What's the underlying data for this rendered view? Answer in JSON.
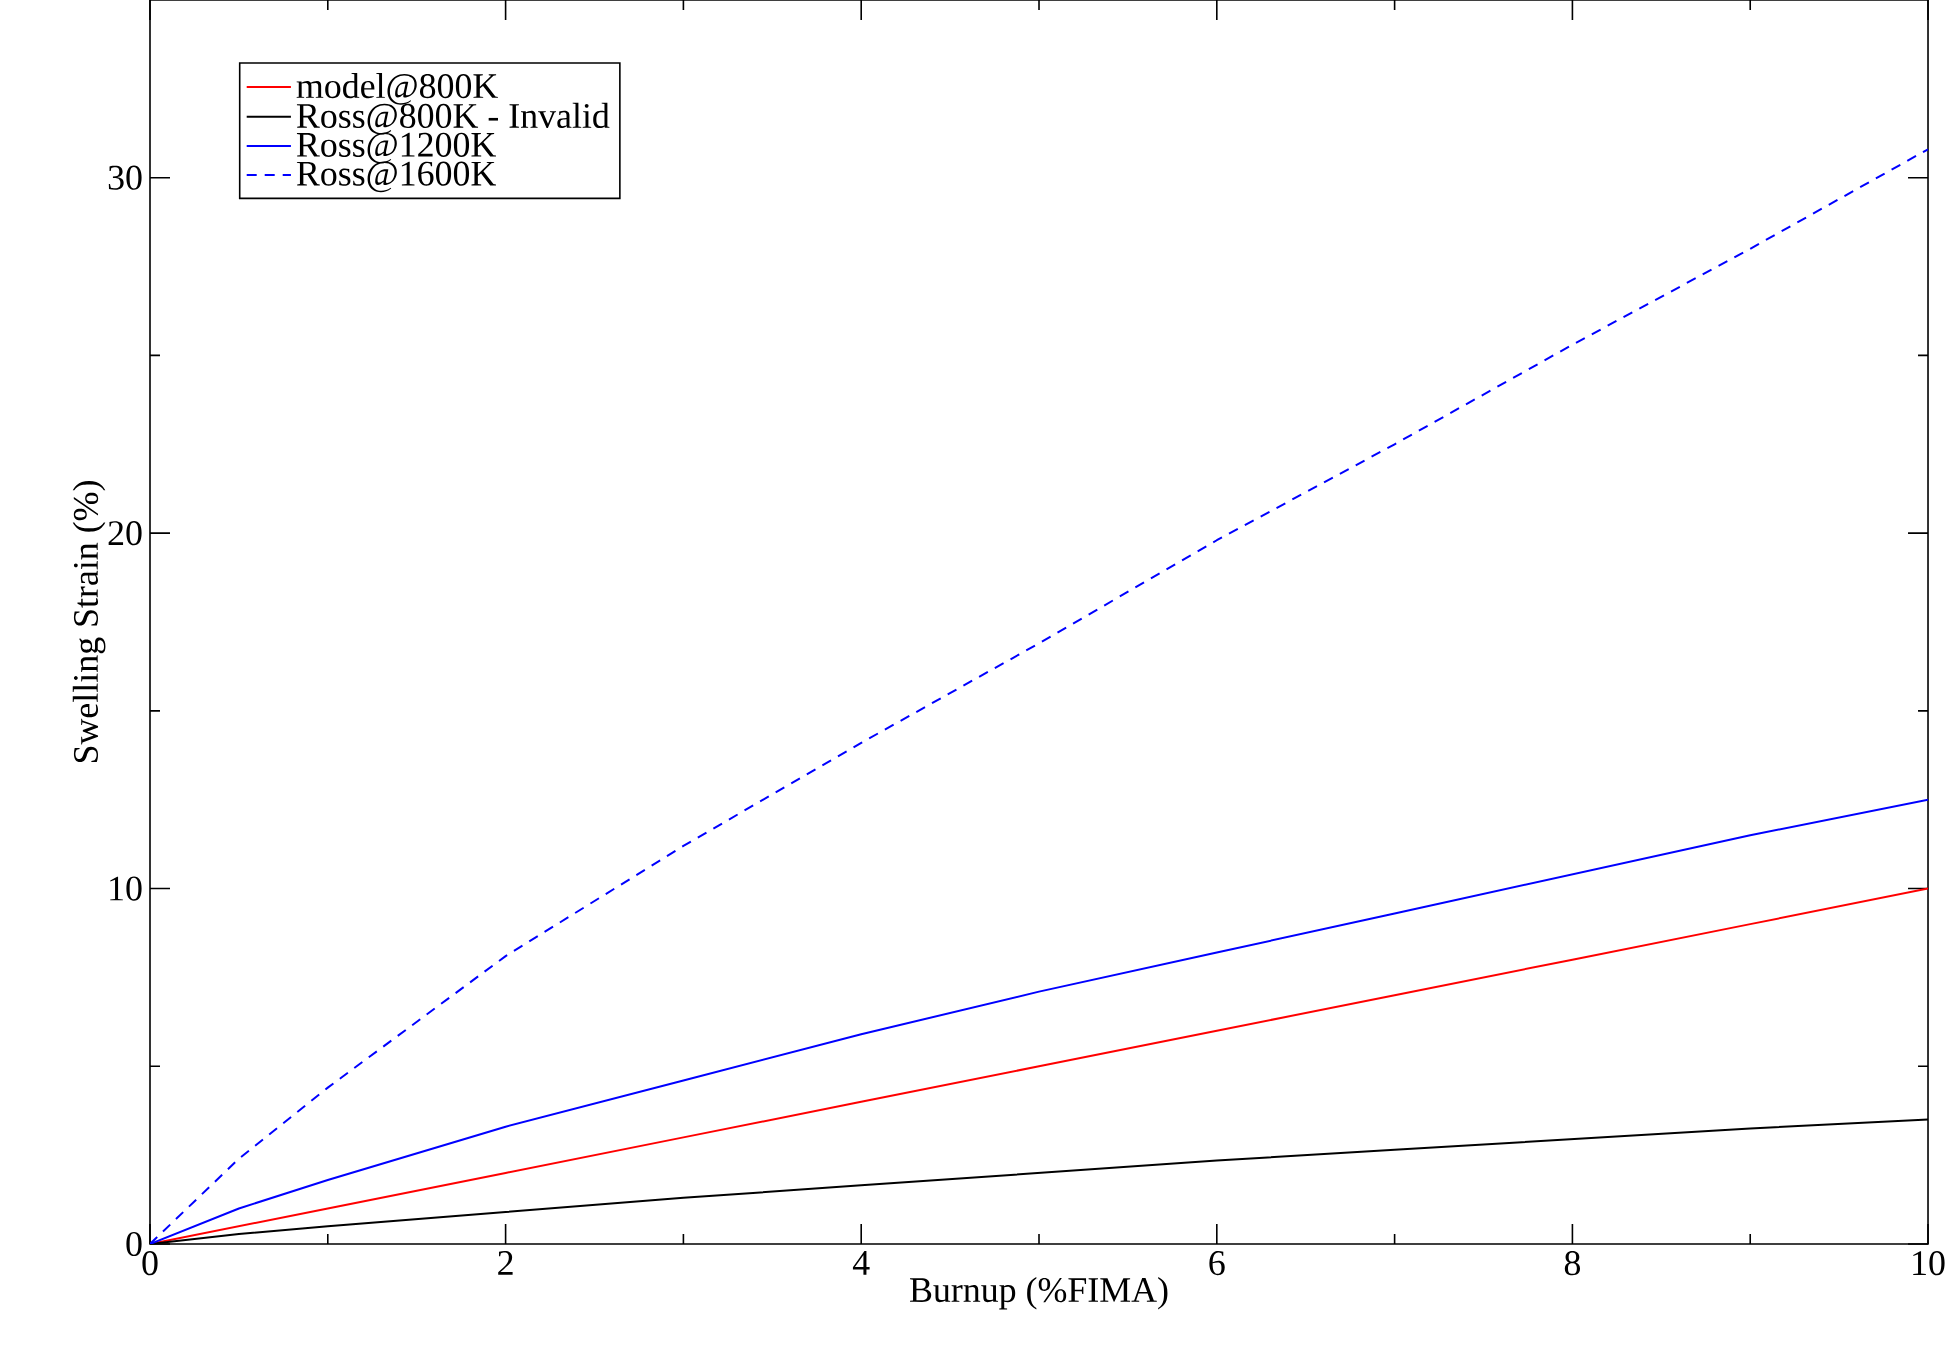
{
  "chart_data": {
    "type": "line",
    "xlabel": "Burnup (%FIMA)",
    "ylabel": "Swelling Strain (%)",
    "x": [
      0,
      0.5,
      1,
      2,
      3,
      4,
      5,
      6,
      7,
      8,
      9,
      10
    ],
    "series": [
      {
        "name": "model@800K",
        "color": "#ff0000",
        "line_style": "solid",
        "values": [
          0,
          0.5,
          1,
          2,
          3,
          4,
          5,
          6,
          7,
          8,
          9,
          10
        ]
      },
      {
        "name": "Ross@800K - Invalid",
        "color": "#000000",
        "line_style": "solid",
        "values": [
          0,
          0.28,
          0.5,
          0.9,
          1.3,
          1.65,
          2.0,
          2.35,
          2.65,
          2.95,
          3.25,
          3.5
        ]
      },
      {
        "name": "Ross@1200K",
        "color": "#0000ff",
        "line_style": "solid",
        "values": [
          0,
          1.0,
          1.8,
          3.3,
          4.6,
          5.9,
          7.1,
          8.2,
          9.3,
          10.4,
          11.5,
          12.5
        ]
      },
      {
        "name": "Ross@1600K",
        "color": "#0000ff",
        "line_style": "dashed",
        "values": [
          0,
          2.4,
          4.4,
          8.1,
          11.2,
          14.1,
          16.9,
          19.8,
          22.5,
          25.3,
          28.0,
          30.8
        ]
      }
    ],
    "xlim": [
      0,
      10
    ],
    "ylim": [
      0,
      35
    ],
    "xticks": [
      0,
      2,
      4,
      6,
      8,
      10
    ],
    "yticks": [
      0,
      10,
      20,
      30
    ],
    "grid": false,
    "legend": "top left",
    "marker": "none"
  }
}
